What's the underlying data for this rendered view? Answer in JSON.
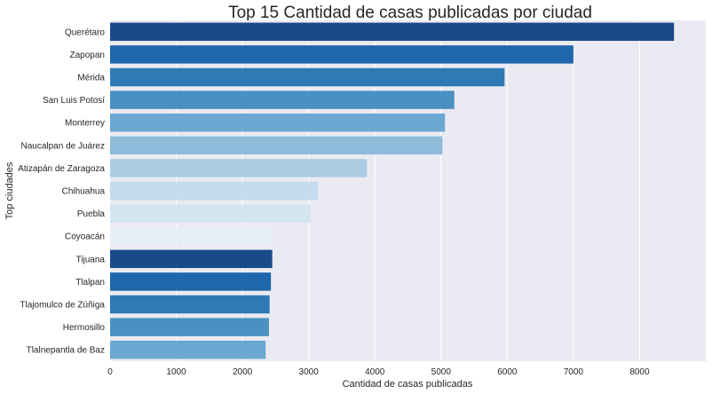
{
  "chart_data": {
    "type": "bar",
    "orientation": "horizontal",
    "title": "Top 15 Cantidad de casas publicadas por ciudad",
    "xlabel": "Cantidad de casas publicadas",
    "ylabel": "Top ciudades",
    "xlim": [
      0,
      9000
    ],
    "xticks": [
      0,
      1000,
      2000,
      3000,
      4000,
      5000,
      6000,
      7000,
      8000
    ],
    "grid": true,
    "legend": "none",
    "categories": [
      "Querétaro",
      "Zapopan",
      "Mérida",
      "San Luis Potosí",
      "Monterrey",
      "Naucalpan de Juárez",
      "Atizapán de Zaragoza",
      "Chihuahua",
      "Puebla",
      "Coyoacán",
      "Tijuana",
      "Tlalpan",
      "Tlajomulco de Zúñiga",
      "Hermosillo",
      "Tlalnepantla de Baz"
    ],
    "values": [
      8520,
      7000,
      5960,
      5200,
      5060,
      5020,
      3880,
      3140,
      3030,
      2450,
      2450,
      2430,
      2410,
      2400,
      2350
    ],
    "colors": [
      "#1a4a8a",
      "#1f66aa",
      "#2f79b5",
      "#4a90c2",
      "#6aa7d1",
      "#8dbbd9",
      "#aacde3",
      "#c4dbec",
      "#d4e5f2",
      "#e6eff8",
      "#1a4a8a",
      "#1f66aa",
      "#2f79b5",
      "#4a90c2",
      "#6aa7d1"
    ],
    "plot_background": "#eaeaf2",
    "grid_color": "#ffffff"
  }
}
